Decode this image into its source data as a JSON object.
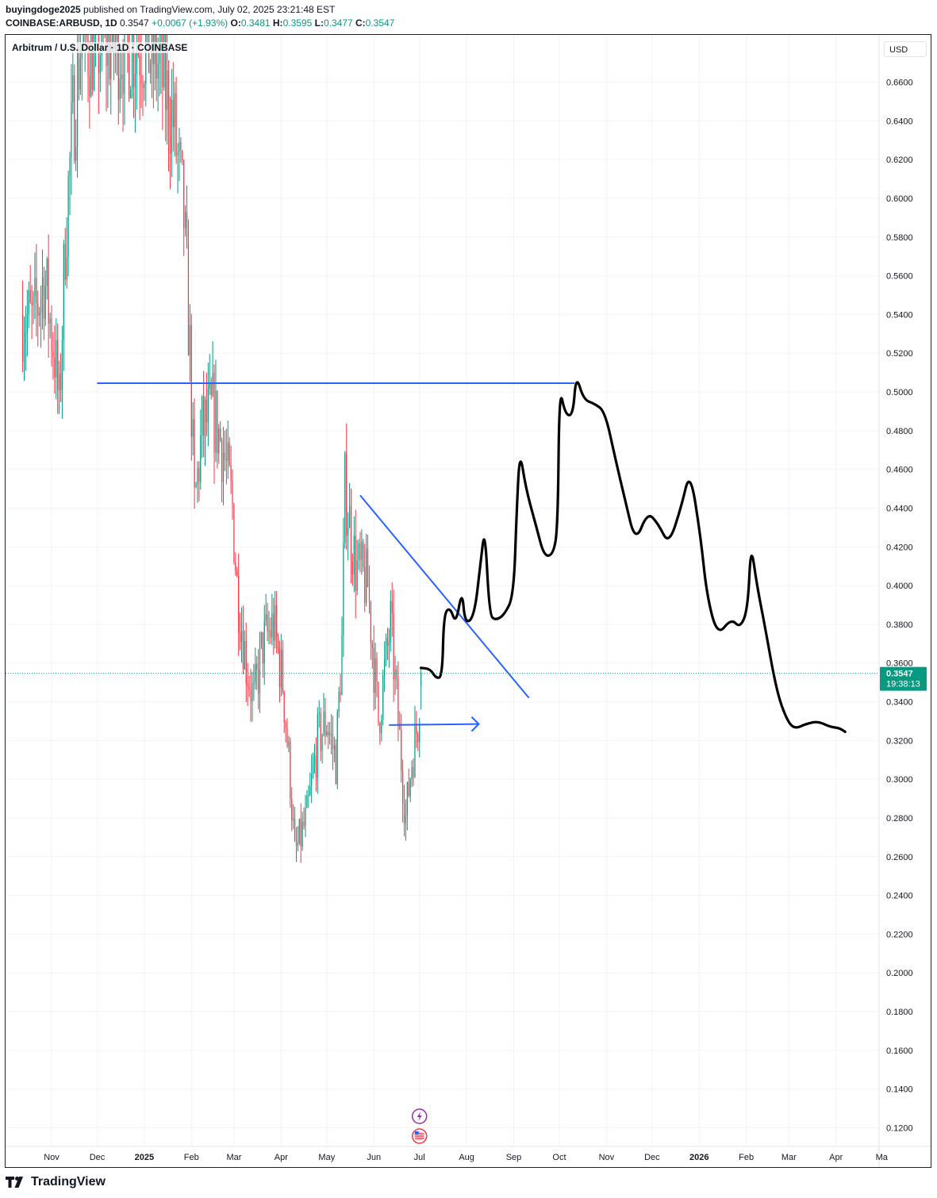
{
  "header": {
    "publisher": "buyingdoge2025",
    "published_text": " published on TradingView.com, July 02, 2025 23:21:48 EST",
    "symbol": "COINBASE:ARBUSD, 1D",
    "price": "0.3547",
    "change": "+0.0067 (+1.93%)",
    "open_label": "O:",
    "open": "0.3481",
    "high_label": "H:",
    "high": "0.3595",
    "low_label": "L:",
    "low": "0.3477",
    "close_label": "C:",
    "close": "0.3547"
  },
  "legend": "Arbitrum / U.S. Dollar · 1D · COINBASE",
  "currency": "USD",
  "last_price_label": {
    "price": "0.3547",
    "countdown": "19:38:13"
  },
  "branding": "TradingView",
  "colors": {
    "up": "#089981",
    "down": "#f23645",
    "drawing_blue": "#2962ff",
    "drawing_black": "#000000",
    "price_label": "#089981"
  },
  "chart_data": {
    "type": "candlestick",
    "y_axis": {
      "ticks": [
        "0.6600",
        "0.6400",
        "0.6200",
        "0.6000",
        "0.5800",
        "0.5600",
        "0.5400",
        "0.5200",
        "0.5000",
        "0.4800",
        "0.4600",
        "0.4400",
        "0.4200",
        "0.4000",
        "0.3800",
        "0.3600",
        "0.3400",
        "0.3200",
        "0.3000",
        "0.2800",
        "0.2600",
        "0.2400",
        "0.2200",
        "0.2000",
        "0.1800",
        "0.1600",
        "0.1400",
        "0.1200"
      ],
      "range": [
        0.11,
        0.68
      ]
    },
    "x_axis": {
      "labels": [
        {
          "text": "Nov",
          "date": "2024-11-01",
          "bold": false
        },
        {
          "text": "Dec",
          "date": "2024-12-01",
          "bold": false
        },
        {
          "text": "2025",
          "date": "2025-01-01",
          "bold": true
        },
        {
          "text": "Feb",
          "date": "2025-02-01",
          "bold": false
        },
        {
          "text": "Mar",
          "date": "2025-03-01",
          "bold": false
        },
        {
          "text": "Apr",
          "date": "2025-04-01",
          "bold": false
        },
        {
          "text": "May",
          "date": "2025-05-01",
          "bold": false
        },
        {
          "text": "Jun",
          "date": "2025-06-01",
          "bold": false
        },
        {
          "text": "Jul",
          "date": "2025-07-01",
          "bold": false
        },
        {
          "text": "Aug",
          "date": "2025-08-01",
          "bold": false
        },
        {
          "text": "Sep",
          "date": "2025-09-01",
          "bold": false
        },
        {
          "text": "Oct",
          "date": "2025-10-01",
          "bold": false
        },
        {
          "text": "Nov",
          "date": "2025-11-01",
          "bold": false
        },
        {
          "text": "Dec",
          "date": "2025-12-01",
          "bold": false
        },
        {
          "text": "2026",
          "date": "2026-01-01",
          "bold": true
        },
        {
          "text": "Feb",
          "date": "2026-02-01",
          "bold": false
        },
        {
          "text": "Mar",
          "date": "2026-03-01",
          "bold": false
        },
        {
          "text": "Apr",
          "date": "2026-04-01",
          "bold": false
        },
        {
          "text": "Ma",
          "date": "2026-05-01",
          "bold": false
        }
      ]
    },
    "candle_anchors": [
      [
        "2024-10-13",
        0.54
      ],
      [
        "2024-10-20",
        0.535
      ],
      [
        "2024-10-27",
        0.56
      ],
      [
        "2024-11-03",
        0.52
      ],
      [
        "2024-11-06",
        0.49
      ],
      [
        "2024-11-10",
        0.58
      ],
      [
        "2024-11-15",
        0.64
      ],
      [
        "2024-11-20",
        0.68
      ],
      [
        "2024-11-25",
        0.68
      ],
      [
        "2024-11-30",
        0.68
      ],
      [
        "2024-12-31",
        0.68
      ],
      [
        "2025-01-10",
        0.67
      ],
      [
        "2025-01-20",
        0.64
      ],
      [
        "2025-01-27",
        0.59
      ],
      [
        "2025-01-31",
        0.52
      ],
      [
        "2025-02-03",
        0.44
      ],
      [
        "2025-02-08",
        0.48
      ],
      [
        "2025-02-15",
        0.49
      ],
      [
        "2025-02-22",
        0.47
      ],
      [
        "2025-02-28",
        0.44
      ],
      [
        "2025-03-03",
        0.4
      ],
      [
        "2025-03-09",
        0.36
      ],
      [
        "2025-03-14",
        0.34
      ],
      [
        "2025-03-20",
        0.37
      ],
      [
        "2025-03-27",
        0.38
      ],
      [
        "2025-04-02",
        0.35
      ],
      [
        "2025-04-07",
        0.3
      ],
      [
        "2025-04-10",
        0.26
      ],
      [
        "2025-04-18",
        0.28
      ],
      [
        "2025-04-25",
        0.32
      ],
      [
        "2025-05-01",
        0.33
      ],
      [
        "2025-05-07",
        0.31
      ],
      [
        "2025-05-11",
        0.37
      ],
      [
        "2025-05-13",
        0.45
      ],
      [
        "2025-05-20",
        0.41
      ],
      [
        "2025-05-28",
        0.4
      ],
      [
        "2025-06-04",
        0.33
      ],
      [
        "2025-06-12",
        0.38
      ],
      [
        "2025-06-18",
        0.32
      ],
      [
        "2025-06-22",
        0.28
      ],
      [
        "2025-06-26",
        0.31
      ],
      [
        "2025-06-30",
        0.33
      ],
      [
        "2025-07-02",
        0.3547
      ]
    ],
    "last_price": 0.3547,
    "last_price_line": "dotted",
    "drawings": [
      {
        "type": "horizontal_line",
        "color": "blue",
        "from": "2024-12-01",
        "to": "2025-10-11",
        "price": 0.5045
      },
      {
        "type": "trend_line",
        "color": "blue",
        "from": [
          "2025-05-23",
          0.4466
        ],
        "to": [
          "2025-09-11",
          0.342
        ]
      },
      {
        "type": "arrow",
        "color": "blue",
        "from": [
          "2025-06-11",
          0.328
        ],
        "to": [
          "2025-08-09",
          0.3285
        ]
      },
      {
        "type": "freehand_projection",
        "color": "black",
        "points": [
          [
            "2025-07-02",
            0.3575
          ],
          [
            "2025-07-08",
            0.357
          ],
          [
            "2025-07-12",
            0.352
          ],
          [
            "2025-07-16",
            0.353
          ],
          [
            "2025-07-17",
            0.385
          ],
          [
            "2025-07-21",
            0.389
          ],
          [
            "2025-07-25",
            0.38
          ],
          [
            "2025-07-29",
            0.398
          ],
          [
            "2025-07-31",
            0.38
          ],
          [
            "2025-08-06",
            0.384
          ],
          [
            "2025-08-10",
            0.41
          ],
          [
            "2025-08-13",
            0.431
          ],
          [
            "2025-08-16",
            0.385
          ],
          [
            "2025-08-20",
            0.382
          ],
          [
            "2025-08-26",
            0.385
          ],
          [
            "2025-09-01",
            0.395
          ],
          [
            "2025-09-03",
            0.44
          ],
          [
            "2025-09-05",
            0.47
          ],
          [
            "2025-09-09",
            0.45
          ],
          [
            "2025-09-16",
            0.43
          ],
          [
            "2025-09-21",
            0.415
          ],
          [
            "2025-09-27",
            0.416
          ],
          [
            "2025-09-30",
            0.43
          ],
          [
            "2025-10-01",
            0.503
          ],
          [
            "2025-10-05",
            0.488
          ],
          [
            "2025-10-10",
            0.488
          ],
          [
            "2025-10-12",
            0.509
          ],
          [
            "2025-10-17",
            0.496
          ],
          [
            "2025-10-24",
            0.494
          ],
          [
            "2025-10-31",
            0.49
          ],
          [
            "2025-11-07",
            0.465
          ],
          [
            "2025-11-13",
            0.445
          ],
          [
            "2025-11-20",
            0.422
          ],
          [
            "2025-11-28",
            0.438
          ],
          [
            "2025-12-05",
            0.432
          ],
          [
            "2025-12-12",
            0.421
          ],
          [
            "2025-12-20",
            0.44
          ],
          [
            "2025-12-26",
            0.46
          ],
          [
            "2026-01-02",
            0.425
          ],
          [
            "2026-01-06",
            0.395
          ],
          [
            "2026-01-13",
            0.374
          ],
          [
            "2026-01-22",
            0.383
          ],
          [
            "2026-01-28",
            0.378
          ],
          [
            "2026-02-02",
            0.388
          ],
          [
            "2026-02-04",
            0.422
          ],
          [
            "2026-02-08",
            0.4
          ],
          [
            "2026-02-13",
            0.38
          ],
          [
            "2026-02-21",
            0.345
          ],
          [
            "2026-02-28",
            0.33
          ],
          [
            "2026-03-05",
            0.326
          ],
          [
            "2026-03-12",
            0.3285
          ],
          [
            "2026-03-20",
            0.33
          ],
          [
            "2026-03-28",
            0.327
          ],
          [
            "2026-04-03",
            0.3265
          ],
          [
            "2026-04-07",
            0.3245
          ]
        ]
      }
    ],
    "markers": [
      {
        "date": "2025-07-01",
        "kind": "event-flash"
      },
      {
        "date": "2025-07-01",
        "kind": "event-flag"
      }
    ]
  }
}
